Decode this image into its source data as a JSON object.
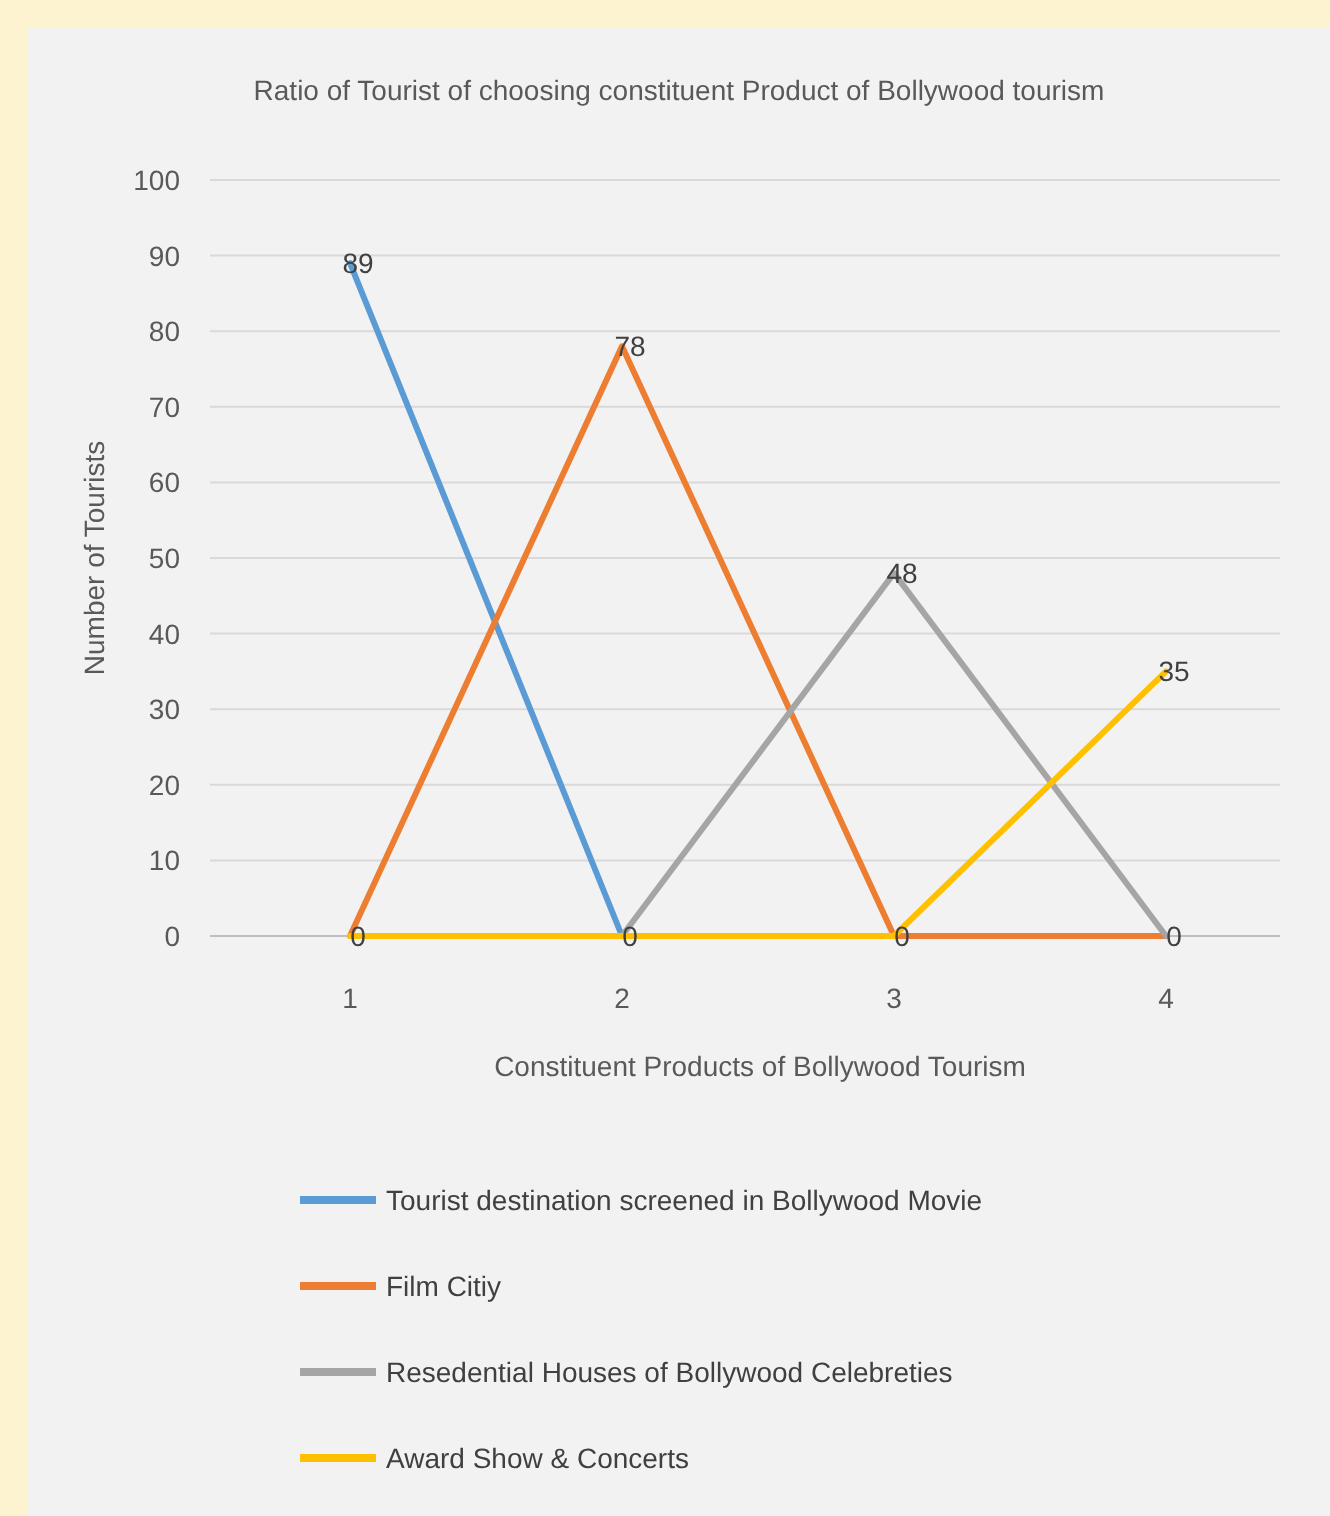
{
  "chart_data": {
    "type": "line",
    "title": "Ratio of Tourist of choosing constituent Product of Bollywood tourism",
    "xlabel": "Constituent Products of Bollywood Tourism",
    "ylabel": "Number of Tourists",
    "categories": [
      "1",
      "2",
      "3",
      "4"
    ],
    "series": [
      {
        "name": "Tourist destination screened in Bollywood Movie",
        "color": "#5b9bd5",
        "values": [
          89,
          0,
          null,
          null
        ],
        "value_labels": [
          "89",
          "0",
          null,
          null
        ]
      },
      {
        "name": "Film Citiy",
        "color": "#ed7d31",
        "values": [
          0,
          78,
          0,
          0
        ],
        "value_labels": [
          "0",
          "78",
          "0",
          "0"
        ]
      },
      {
        "name": "Resedential Houses of Bollywood Celebreties",
        "color": "#a5a5a5",
        "values": [
          null,
          0,
          48,
          0
        ],
        "value_labels": [
          null,
          null,
          "48",
          null
        ]
      },
      {
        "name": "Award Show & Concerts",
        "color": "#ffc000",
        "values": [
          0,
          0,
          0,
          35
        ],
        "value_labels": [
          null,
          null,
          null,
          "35"
        ]
      }
    ],
    "ylim": [
      0,
      100
    ],
    "yticks": [
      0,
      10,
      20,
      30,
      40,
      50,
      60,
      70,
      80,
      90,
      100
    ],
    "grid": "y",
    "legend": "bottom",
    "marker": "none"
  }
}
